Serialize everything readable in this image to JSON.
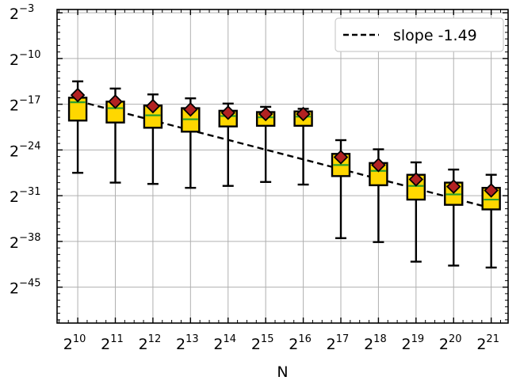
{
  "chart_data": {
    "type": "box",
    "xlabel": "N",
    "x_scale": "log2",
    "y_scale": "log2",
    "xlim_exp": [
      9.45,
      21.45
    ],
    "ylim_exp": [
      -50.5,
      -2.5
    ],
    "x_ticks": [
      {
        "base": "2",
        "exp": "10",
        "value": 10
      },
      {
        "base": "2",
        "exp": "11",
        "value": 11
      },
      {
        "base": "2",
        "exp": "12",
        "value": 12
      },
      {
        "base": "2",
        "exp": "13",
        "value": 13
      },
      {
        "base": "2",
        "exp": "14",
        "value": 14
      },
      {
        "base": "2",
        "exp": "15",
        "value": 15
      },
      {
        "base": "2",
        "exp": "16",
        "value": 16
      },
      {
        "base": "2",
        "exp": "17",
        "value": 17
      },
      {
        "base": "2",
        "exp": "18",
        "value": 18
      },
      {
        "base": "2",
        "exp": "19",
        "value": 19
      },
      {
        "base": "2",
        "exp": "20",
        "value": 20
      },
      {
        "base": "2",
        "exp": "21",
        "value": 21
      }
    ],
    "y_ticks": [
      {
        "base": "2",
        "exp": "−3",
        "value": -3
      },
      {
        "base": "2",
        "exp": "−10",
        "value": -10
      },
      {
        "base": "2",
        "exp": "−17",
        "value": -17
      },
      {
        "base": "2",
        "exp": "−24",
        "value": -24
      },
      {
        "base": "2",
        "exp": "−31",
        "value": -31
      },
      {
        "base": "2",
        "exp": "−38",
        "value": -38
      },
      {
        "base": "2",
        "exp": "−45",
        "value": -45
      }
    ],
    "grid": true,
    "legend": {
      "position": "top-right",
      "label": "slope -1.49",
      "style": "dashed-black"
    },
    "boxes_log2": [
      {
        "x": 10,
        "whisker_low": -27.5,
        "q1": -19.5,
        "median": -16.7,
        "q3": -16.0,
        "whisker_high": -13.5,
        "mean": -15.6
      },
      {
        "x": 11,
        "whisker_low": -29.0,
        "q1": -19.8,
        "median": -17.6,
        "q3": -16.6,
        "whisker_high": -14.6,
        "mean": -16.6
      },
      {
        "x": 12,
        "whisker_low": -29.2,
        "q1": -20.6,
        "median": -18.7,
        "q3": -17.2,
        "whisker_high": -15.5,
        "mean": -17.3
      },
      {
        "x": 13,
        "whisker_low": -29.8,
        "q1": -21.2,
        "median": -19.3,
        "q3": -17.6,
        "whisker_high": -16.1,
        "mean": -17.8
      },
      {
        "x": 14,
        "whisker_low": -29.5,
        "q1": -20.4,
        "median": -18.8,
        "q3": -18.0,
        "whisker_high": -16.9,
        "mean": -18.3
      },
      {
        "x": 15,
        "whisker_low": -28.9,
        "q1": -20.3,
        "median": -19.0,
        "q3": -18.2,
        "whisker_high": -17.4,
        "mean": -18.5
      },
      {
        "x": 16,
        "whisker_low": -29.3,
        "q1": -20.3,
        "median": -18.9,
        "q3": -18.1,
        "whisker_high": -17.7,
        "mean": -18.5
      },
      {
        "x": 17,
        "whisker_low": -37.5,
        "q1": -28.0,
        "median": -26.3,
        "q3": -24.6,
        "whisker_high": -22.5,
        "mean": -25.1
      },
      {
        "x": 18,
        "whisker_low": -38.1,
        "q1": -29.4,
        "median": -27.2,
        "q3": -26.0,
        "whisker_high": -23.9,
        "mean": -26.3
      },
      {
        "x": 19,
        "whisker_low": -41.1,
        "q1": -31.6,
        "median": -29.5,
        "q3": -27.8,
        "whisker_high": -25.9,
        "mean": -28.5
      },
      {
        "x": 20,
        "whisker_low": -41.7,
        "q1": -32.4,
        "median": -30.8,
        "q3": -29.0,
        "whisker_high": -27.0,
        "mean": -29.6
      },
      {
        "x": 21,
        "whisker_low": -42.0,
        "q1": -33.1,
        "median": -31.6,
        "q3": -29.8,
        "whisker_high": -27.8,
        "mean": -30.2
      }
    ],
    "slope_line": {
      "slope": -1.49,
      "x_start": 10,
      "y_start": -16.5,
      "x_end": 21,
      "y_end": -32.9
    },
    "colors": {
      "box_fill": "#ffd700",
      "box_edge": "#000000",
      "median": "#2ca02c",
      "mean_marker": "#b22222",
      "slope_line": "#000000",
      "grid": "#b0b0b0"
    }
  }
}
